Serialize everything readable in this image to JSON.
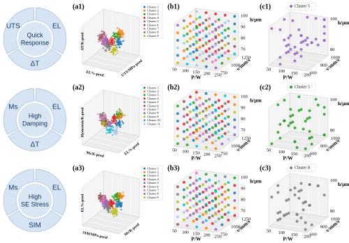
{
  "palette": [
    "#1f77b4",
    "#ff7f0e",
    "#2ca02c",
    "#d62728",
    "#9467bd",
    "#8c564b",
    "#e377c2",
    "#7f7f7f",
    "#bcbd22",
    "#17becf",
    "#aec7e8"
  ],
  "rows": [
    {
      "donut": {
        "segments": [
          "UTS",
          "EL",
          "ΔT"
        ],
        "center": [
          "Quick",
          "Response"
        ]
      },
      "a": {
        "label": "(a1)",
        "legend": [
          "Cluster 1",
          "Cluster 2",
          "Cluster 3",
          "Cluster 4",
          "Cluster 5",
          "Cluster 6",
          "Cluster 7",
          "Cluster 8",
          "Cluster 9"
        ],
        "axes": [
          "EL%-pred",
          "UTS/MPa-pred",
          "ΔT/K-pred"
        ]
      },
      "b": {
        "label": "(b1)",
        "axes": [
          "P/W",
          "v/mm/s",
          "h/μm"
        ],
        "p_ticks": [
          50,
          100,
          150,
          200,
          250
        ],
        "v_ticks": [
          750,
          1000,
          1250
        ],
        "h_ticks": [
          70,
          80,
          90,
          100
        ]
      },
      "c": {
        "label": "(c1)",
        "legend": "Cluster 5",
        "color": "#9467bd",
        "axes": [
          "P/W",
          "v/mm/s",
          "h/μm"
        ],
        "p_ticks": [
          50,
          100,
          150,
          200
        ],
        "v_ticks": [
          600,
          800,
          1000
        ],
        "h_ticks": [
          80,
          100
        ]
      }
    },
    {
      "donut": {
        "segments": [
          "Ms",
          "EL",
          "ΔT"
        ],
        "center": [
          "High",
          "Damping"
        ]
      },
      "a": {
        "label": "(a2)",
        "legend": [
          "Cluster 1",
          "Cluster 2",
          "Cluster 3",
          "Cluster 4",
          "Cluster 5",
          "Cluster 6",
          "Cluster 7",
          "Cluster 8",
          "Cluster 9",
          "Cluster 10",
          "Cluster 11"
        ],
        "axes": [
          "Ms/K-pred",
          "EL%-pred",
          "Hysteresis/K-pred"
        ]
      },
      "b": {
        "label": "(b2)",
        "axes": [
          "P/W",
          "v/mm/s",
          "h/μm"
        ],
        "p_ticks": [
          50,
          100,
          150,
          200,
          250
        ],
        "v_ticks": [
          750,
          1000,
          1250
        ],
        "h_ticks": [
          70,
          80,
          90,
          100
        ]
      },
      "c": {
        "label": "(c2)",
        "legend": "Cluster 3",
        "color": "#2ca02c",
        "axes": [
          "P/W",
          "v/mm/s",
          "h/μm"
        ],
        "p_ticks": [
          50,
          100,
          150,
          200
        ],
        "v_ticks": [
          600,
          800,
          1000
        ],
        "h_ticks": [
          80,
          100
        ]
      }
    },
    {
      "donut": {
        "segments": [
          "Ms",
          "EL",
          "SIM"
        ],
        "center": [
          "High",
          "SE Stress"
        ]
      },
      "a": {
        "label": "(a3)",
        "legend": [
          "Cluster 1",
          "Cluster 2",
          "Cluster 3",
          "Cluster 4",
          "Cluster 5",
          "Cluster 6",
          "Cluster 7",
          "Cluster 8",
          "Cluster 9"
        ],
        "axes": [
          "SIM/MPa-pred",
          "Ms/K-pred",
          "EL%-pred"
        ]
      },
      "b": {
        "label": "(b3)",
        "axes": [
          "P/W",
          "v/mm/s",
          "h/μm"
        ],
        "p_ticks": [
          50,
          100,
          150,
          200,
          250
        ],
        "v_ticks": [
          750,
          1000,
          1250
        ],
        "h_ticks": [
          70,
          80,
          90,
          100
        ]
      },
      "c": {
        "label": "(c3)",
        "legend": "Cluster 8",
        "color": "#7f7f7f",
        "axes": [
          "P/W",
          "v/mm/s",
          "h/μm"
        ],
        "p_ticks": [
          50,
          100,
          150,
          200
        ],
        "v_ticks": [
          600,
          800,
          1000
        ],
        "h_ticks": [
          80,
          100
        ]
      }
    }
  ]
}
